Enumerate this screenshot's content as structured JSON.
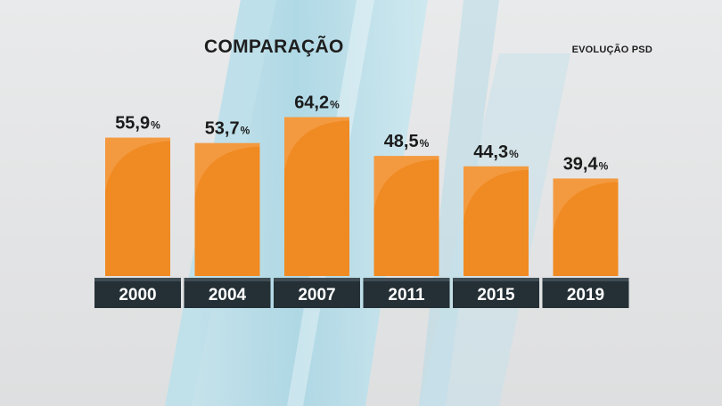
{
  "header": {
    "title": "COMPARAÇÃO",
    "subtitle": "EVOLUÇÃO PSD"
  },
  "colors": {
    "bar": "#f08a22",
    "bar_highlight": "#f6a75a",
    "label_box": "#243036",
    "background": "#e6e8e9",
    "accent_stripe": "#a9d6e4"
  },
  "chart_data": {
    "type": "bar",
    "categories": [
      "2000",
      "2004",
      "2007",
      "2011",
      "2015",
      "2019"
    ],
    "values": [
      55.9,
      53.7,
      64.2,
      48.5,
      44.3,
      39.4
    ],
    "value_labels": [
      "55,9",
      "53,7",
      "64,2",
      "48,5",
      "44,3",
      "39,4"
    ],
    "unit": "%",
    "title": "COMPARAÇÃO",
    "subtitle": "EVOLUÇÃO PSD",
    "xlabel": "",
    "ylabel": "",
    "ylim": [
      0,
      100
    ],
    "grid": false,
    "legend": "none"
  }
}
